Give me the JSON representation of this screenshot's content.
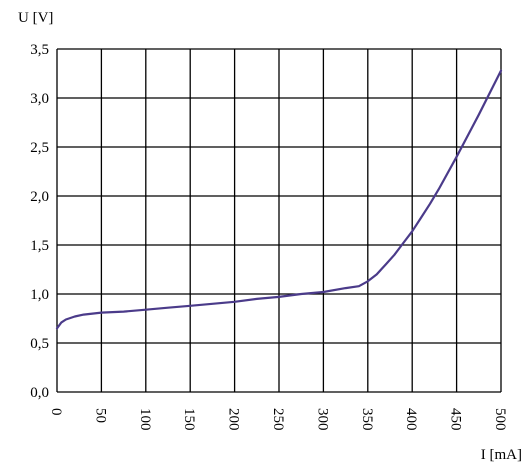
{
  "chart_data": {
    "type": "line",
    "ylabel": "U [V]",
    "xlabel": "I [mA]",
    "xlim": [
      0,
      500
    ],
    "ylim": [
      0,
      3.5
    ],
    "x_ticks": [
      "0",
      "50",
      "100",
      "150",
      "200",
      "250",
      "300",
      "350",
      "400",
      "450",
      "500"
    ],
    "y_ticks": [
      "0,0",
      "0,5",
      "1,0",
      "1,5",
      "2,0",
      "2,5",
      "3,0",
      "3,5"
    ],
    "grid": true,
    "series": [
      {
        "color": "#4b3b8a",
        "x": [
          0,
          5,
          10,
          20,
          30,
          50,
          75,
          100,
          125,
          150,
          175,
          200,
          225,
          250,
          275,
          300,
          325,
          340,
          350,
          360,
          370,
          380,
          390,
          400,
          410,
          420,
          430,
          450,
          475,
          500
        ],
        "y": [
          0.65,
          0.71,
          0.74,
          0.77,
          0.79,
          0.81,
          0.82,
          0.84,
          0.86,
          0.88,
          0.9,
          0.92,
          0.95,
          0.97,
          1.0,
          1.02,
          1.06,
          1.08,
          1.13,
          1.2,
          1.3,
          1.4,
          1.52,
          1.64,
          1.78,
          1.92,
          2.07,
          2.4,
          2.83,
          3.28
        ]
      }
    ]
  }
}
